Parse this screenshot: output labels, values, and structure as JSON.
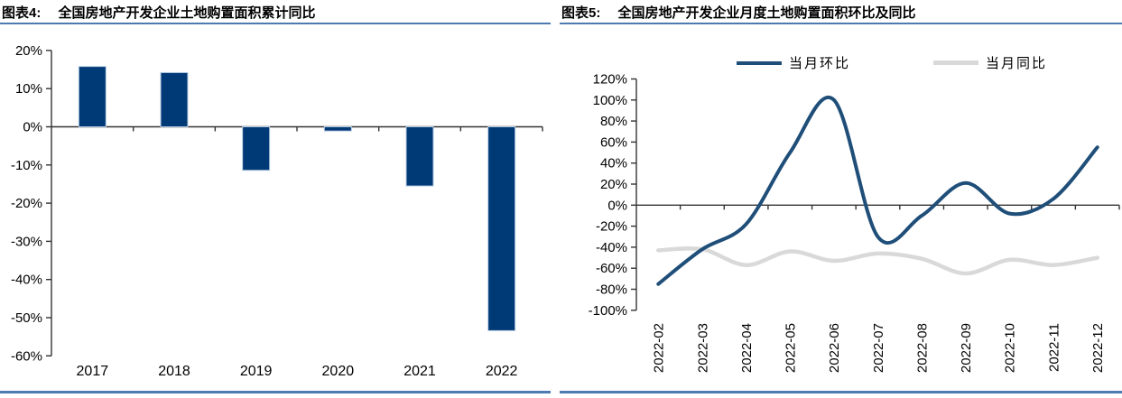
{
  "page": {
    "background": "#ffffff",
    "rule_color": "#4d7ab0"
  },
  "panels": [
    {
      "label": "图表4:",
      "title": "全国房地产开发企业土地购置面积累计同比"
    },
    {
      "label": "图表5:",
      "title": "全国房地产开发企业月度土地购置面积环比及同比"
    }
  ],
  "chart_data": [
    {
      "type": "bar",
      "title": "全国房地产开发企业土地购置面积累计同比",
      "categories": [
        "2017",
        "2018",
        "2019",
        "2020",
        "2021",
        "2022"
      ],
      "values": [
        15.8,
        14.2,
        -11.4,
        -1.1,
        -15.5,
        -53.4
      ],
      "unit": "%",
      "ylim": [
        -60,
        20
      ],
      "ytick_values": [
        20,
        10,
        0,
        -10,
        -20,
        -30,
        -40,
        -50,
        -60
      ],
      "ytick_labels": [
        "20%",
        "10%",
        "0%",
        "-10%",
        "-20%",
        "-30%",
        "-40%",
        "-50%",
        "-60%"
      ],
      "xlabel": "",
      "ylabel": "",
      "grid": false,
      "bar_color": "#003a76",
      "bar_edge_color": "#b7cbe3"
    },
    {
      "type": "line",
      "title": "全国房地产开发企业月度土地购置面积环比及同比",
      "categories": [
        "2022-02",
        "2022-03",
        "2022-04",
        "2022-05",
        "2022-06",
        "2022-07",
        "2022-08",
        "2022-09",
        "2022-10",
        "2022-11",
        "2022-12"
      ],
      "series": [
        {
          "name": "当月环比",
          "color": "#1f4e79",
          "values": [
            -75,
            -42,
            -18,
            50,
            100,
            -30,
            -10,
            21,
            -8,
            6,
            55
          ]
        },
        {
          "name": "当月同比",
          "color": "#d9d9d9",
          "values": [
            -43,
            -42,
            -57,
            -44,
            -53,
            -46,
            -51,
            -65,
            -52,
            -57,
            -50
          ]
        }
      ],
      "unit": "%",
      "ylim": [
        -100,
        120
      ],
      "ytick_values": [
        120,
        100,
        80,
        60,
        40,
        20,
        0,
        -20,
        -40,
        -60,
        -80,
        -100
      ],
      "ytick_labels": [
        "120%",
        "100%",
        "80%",
        "60%",
        "40%",
        "20%",
        "0%",
        "-20%",
        "-40%",
        "-60%",
        "-80%",
        "-100%"
      ],
      "grid": false,
      "legend_position": "top"
    }
  ]
}
